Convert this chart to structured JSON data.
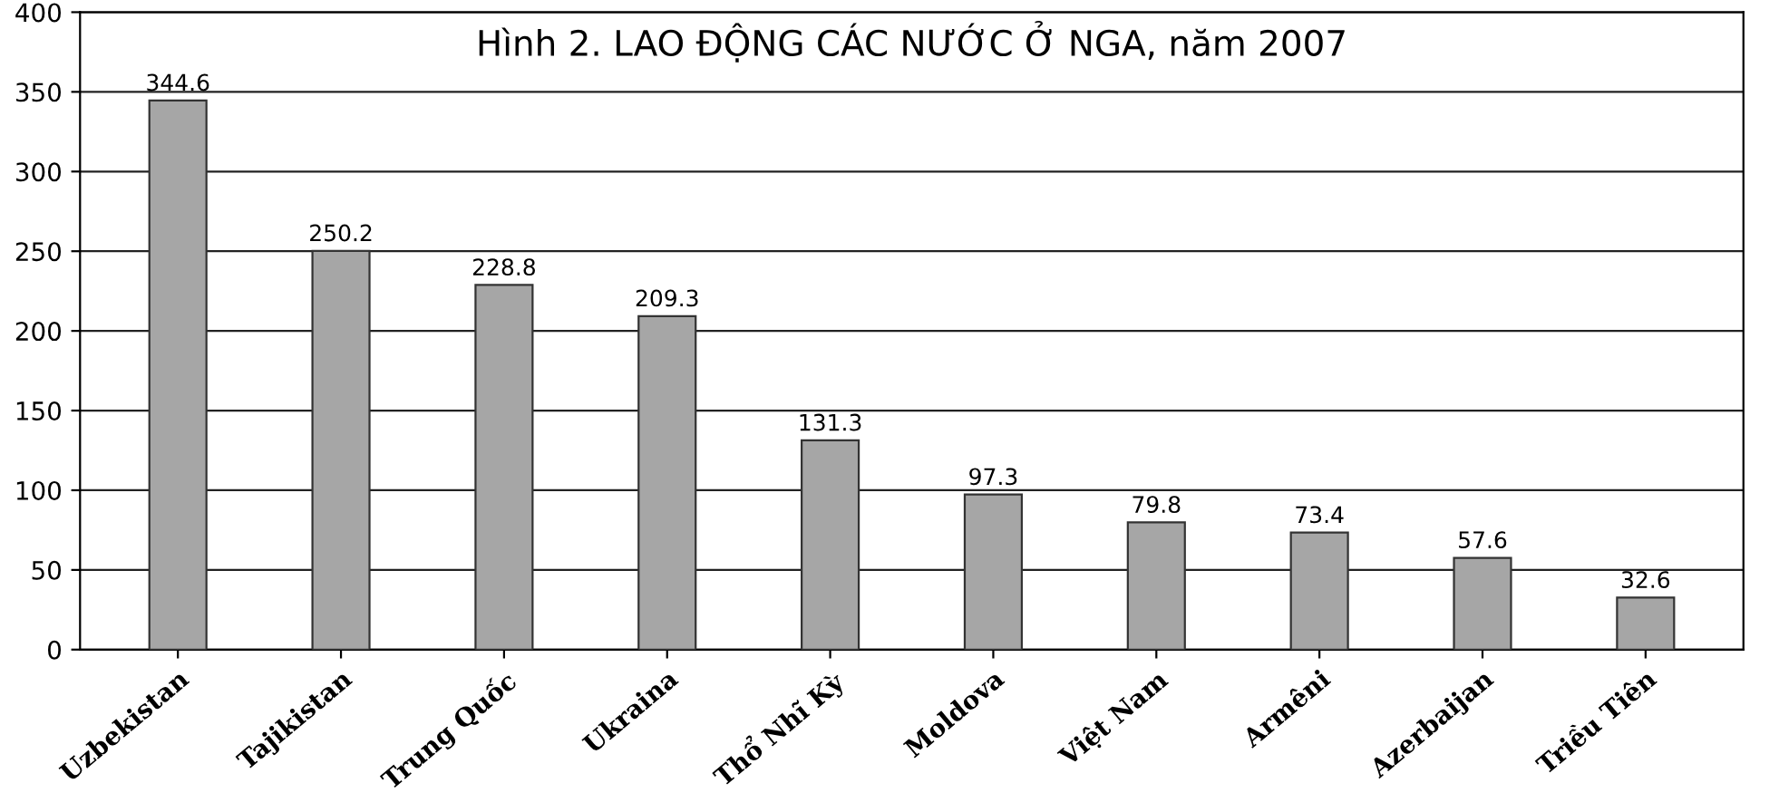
{
  "chart_data": {
    "type": "bar",
    "title": "Hình 2. LAO ĐỘNG CÁC NƯỚC Ở NGA, năm 2007",
    "categories": [
      "Uzbekistan",
      "Tajikistan",
      "Trung Quốc",
      "Ukraina",
      "Thổ Nhĩ Kỳ",
      "Moldova",
      "Việt Nam",
      "Armêni",
      "Azerbaijan",
      "Triều Tiên"
    ],
    "values": [
      344.6,
      250.2,
      228.8,
      209.3,
      131.3,
      97.3,
      79.8,
      73.4,
      57.6,
      32.6
    ],
    "color": "#a6a6a6",
    "data_labels": true,
    "grid": "y",
    "ylim": [
      0,
      400
    ],
    "yticks": [
      0,
      50,
      100,
      150,
      200,
      250,
      300,
      350,
      400
    ]
  }
}
